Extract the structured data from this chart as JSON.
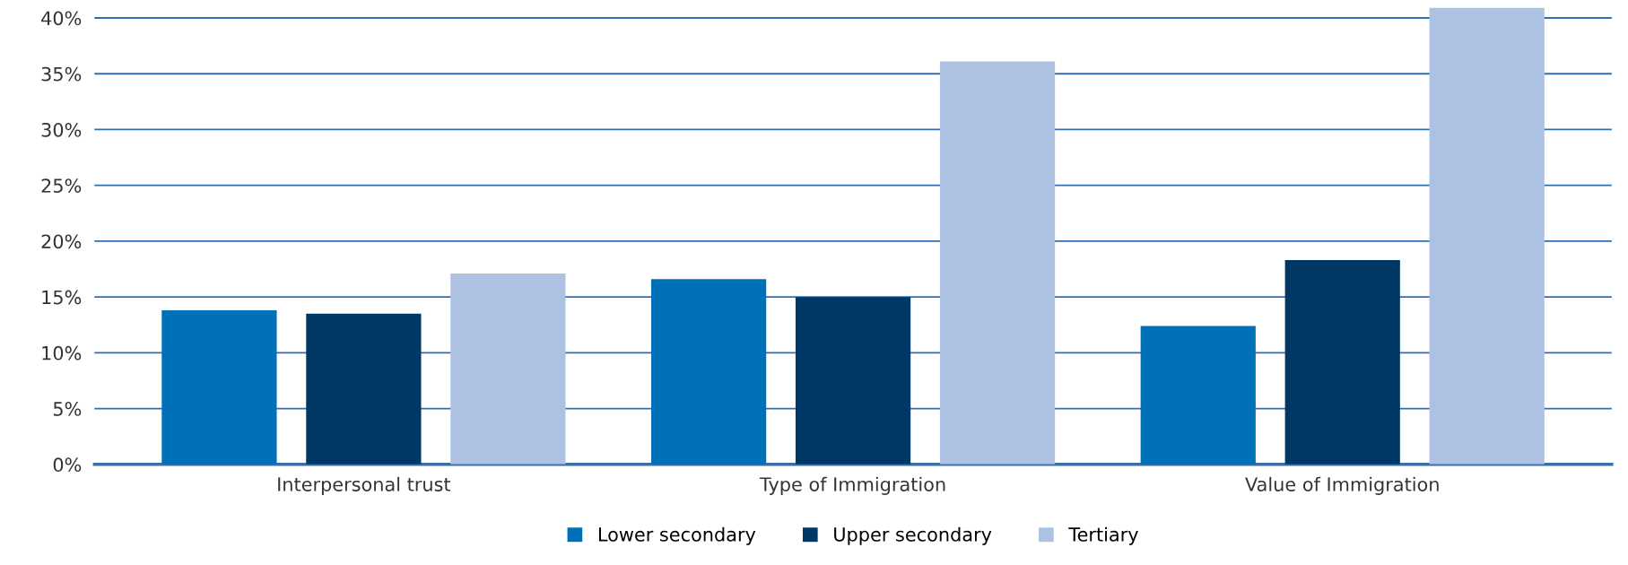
{
  "chart_data": {
    "type": "bar",
    "categories": [
      "Interpersonal trust",
      "Type of Immigration",
      "Value of Immigration"
    ],
    "series": [
      {
        "name": "Lower secondary",
        "color": "#0070b8",
        "values": [
          13.8,
          16.6,
          12.4
        ]
      },
      {
        "name": "Upper secondary",
        "color": "#003865",
        "values": [
          13.5,
          15.0,
          18.3
        ]
      },
      {
        "name": "Tertiary",
        "color": "#adc2e2",
        "values": [
          17.1,
          36.1,
          40.9
        ]
      }
    ],
    "ylim": [
      0,
      41
    ],
    "yticks": [
      {
        "value": 0,
        "label": "0%"
      },
      {
        "value": 5,
        "label": "5%"
      },
      {
        "value": 10,
        "label": "10%"
      },
      {
        "value": 15,
        "label": "15%"
      },
      {
        "value": 20,
        "label": "20%"
      },
      {
        "value": 25,
        "label": "25%"
      },
      {
        "value": 30,
        "label": "30%"
      },
      {
        "value": 35,
        "label": "35%"
      },
      {
        "value": 40,
        "label": "40%"
      }
    ],
    "grid": "y",
    "legend": "bottom"
  }
}
